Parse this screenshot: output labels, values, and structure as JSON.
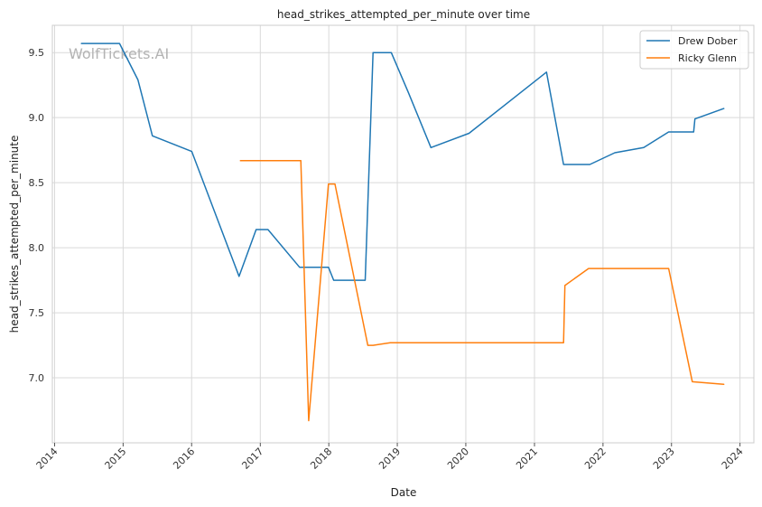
{
  "chart_data": {
    "type": "line",
    "title": "head_strikes_attempted_per_minute over time",
    "xlabel": "Date",
    "ylabel": "head_strikes_attempted_per_minute",
    "watermark": "WolfTickets.AI",
    "xlim": [
      "2013-12-20",
      "2024-03-15"
    ],
    "ylim": [
      6.5,
      9.71
    ],
    "x_ticks": [
      "2014",
      "2015",
      "2016",
      "2017",
      "2018",
      "2019",
      "2020",
      "2021",
      "2022",
      "2023",
      "2024"
    ],
    "y_ticks": [
      "7.0",
      "7.5",
      "8.0",
      "8.5",
      "9.0",
      "9.5"
    ],
    "grid": true,
    "legend": "top-right",
    "series": [
      {
        "name": "Drew Dober",
        "color": "#1f77b4",
        "points": [
          [
            "2014-05-24",
            9.57
          ],
          [
            "2014-12-13",
            9.57
          ],
          [
            "2015-03-21",
            9.29
          ],
          [
            "2015-06-06",
            8.86
          ],
          [
            "2016-01-02",
            8.74
          ],
          [
            "2016-09-10",
            7.78
          ],
          [
            "2016-12-10",
            8.14
          ],
          [
            "2017-02-11",
            8.14
          ],
          [
            "2017-07-29",
            7.85
          ],
          [
            "2017-12-30",
            7.85
          ],
          [
            "2018-01-27",
            7.75
          ],
          [
            "2018-07-14",
            7.75
          ],
          [
            "2018-08-25",
            9.5
          ],
          [
            "2018-11-30",
            9.5
          ],
          [
            "2019-03-02",
            9.19
          ],
          [
            "2019-06-29",
            8.77
          ],
          [
            "2020-01-18",
            8.88
          ],
          [
            "2021-03-06",
            9.35
          ],
          [
            "2021-06-05",
            8.64
          ],
          [
            "2021-10-23",
            8.64
          ],
          [
            "2022-03-05",
            8.73
          ],
          [
            "2022-08-06",
            8.77
          ],
          [
            "2022-12-17",
            8.89
          ],
          [
            "2023-04-29",
            8.89
          ],
          [
            "2023-05-06",
            8.99
          ],
          [
            "2023-10-07",
            9.07
          ]
        ]
      },
      {
        "name": "Ricky Glenn",
        "color": "#ff7f0e",
        "points": [
          [
            "2016-09-17",
            8.67
          ],
          [
            "2017-08-05",
            8.67
          ],
          [
            "2017-09-16",
            6.67
          ],
          [
            "2017-12-30",
            8.49
          ],
          [
            "2018-02-03",
            8.49
          ],
          [
            "2018-07-28",
            7.25
          ],
          [
            "2018-08-25",
            7.25
          ],
          [
            "2018-11-24",
            7.27
          ],
          [
            "2021-06-05",
            7.27
          ],
          [
            "2021-06-12",
            7.71
          ],
          [
            "2021-10-16",
            7.84
          ],
          [
            "2022-12-17",
            7.84
          ],
          [
            "2023-04-22",
            6.97
          ],
          [
            "2023-10-07",
            6.95
          ]
        ]
      }
    ]
  }
}
